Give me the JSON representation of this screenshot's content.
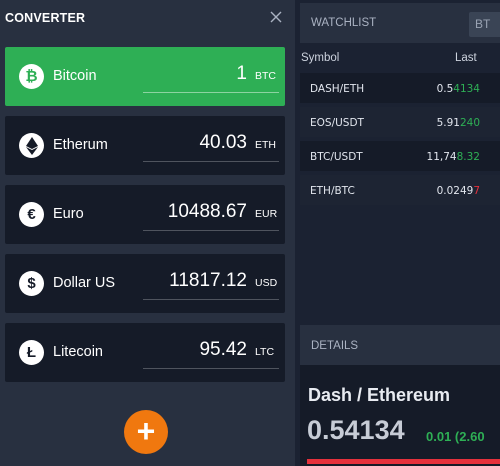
{
  "converter": {
    "title": "CONVERTER",
    "rows": [
      {
        "name": "Bitcoin",
        "amount": "1",
        "unit": "BTC",
        "icon": "bitcoin-icon",
        "glyph": "₿"
      },
      {
        "name": "Etherum",
        "amount": "40.03",
        "unit": "ETH",
        "icon": "ethereum-icon",
        "glyph": "◆"
      },
      {
        "name": "Euro",
        "amount": "10488.67",
        "unit": "EUR",
        "icon": "euro-icon",
        "glyph": "€"
      },
      {
        "name": "Dollar US",
        "amount": "11817.12",
        "unit": "USD",
        "icon": "dollar-icon",
        "glyph": "$"
      },
      {
        "name": "Litecoin",
        "amount": "95.42",
        "unit": "LTC",
        "icon": "litecoin-icon",
        "glyph": "Ł"
      }
    ],
    "add_label": "+"
  },
  "watchlist": {
    "title": "WATCHLIST",
    "toggle_label": "BT",
    "columns": {
      "symbol": "Symbol",
      "last": "Last"
    },
    "rows": [
      {
        "symbol": "DASH/ETH",
        "price_base": "0.5",
        "price_tail": "4134",
        "direction": "up"
      },
      {
        "symbol": "EOS/USDT",
        "price_base": "5.91",
        "price_tail": "240",
        "direction": "up"
      },
      {
        "symbol": "BTC/USDT",
        "price_base": "11,74",
        "price_tail": "8.32",
        "direction": "up"
      },
      {
        "symbol": "ETH/BTC",
        "price_base": "0.0249",
        "price_tail": "7",
        "direction": "down"
      }
    ]
  },
  "details": {
    "title": "DETAILS",
    "pair": "Dash / Ethereum",
    "price": "0.54134",
    "change": "0.01 (2.60"
  },
  "colors": {
    "accent_green": "#2eaf55",
    "accent_orange": "#f0780f",
    "down_red": "#e5313c"
  }
}
